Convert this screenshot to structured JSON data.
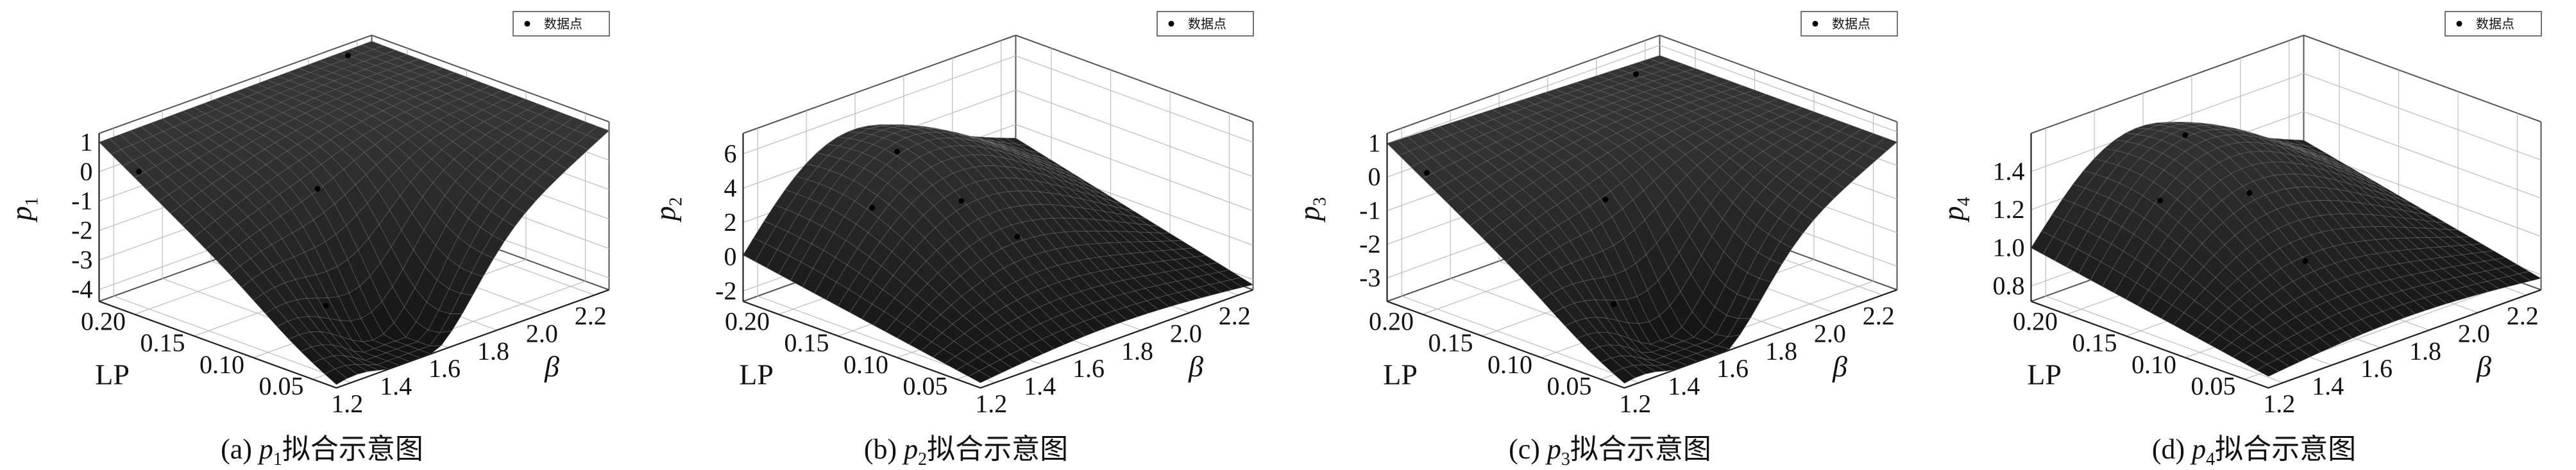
{
  "legend_label": "数据点",
  "panels": [
    {
      "caption_prefix": "(a) ",
      "caption_var": "p",
      "caption_sub": "1",
      "caption_suffix": "拟合示意图"
    },
    {
      "caption_prefix": "(b) ",
      "caption_var": "p",
      "caption_sub": "2",
      "caption_suffix": "拟合示意图"
    },
    {
      "caption_prefix": "(c) ",
      "caption_var": "p",
      "caption_sub": "3",
      "caption_suffix": "拟合示意图"
    },
    {
      "caption_prefix": "(d) ",
      "caption_var": "p",
      "caption_sub": "4",
      "caption_suffix": "拟合示意图"
    }
  ],
  "chart_data": [
    {
      "type": "surface",
      "title": "",
      "zlabel": "p1",
      "xlabel": "β",
      "ylabel": "LP",
      "x_ticks": [
        "1.2",
        "1.4",
        "1.6",
        "1.8",
        "2.0",
        "2.2"
      ],
      "y_ticks": [
        "0.05",
        "0.10",
        "0.15",
        "0.20"
      ],
      "z_ticks": [
        "-4",
        "-3",
        "-2",
        "-1",
        "0",
        "1"
      ],
      "xlim": [
        1.15,
        2.3
      ],
      "ylim": [
        0.03,
        0.2
      ],
      "zlim": [
        -4.4,
        1.3
      ],
      "legend": "数据点",
      "legend_position": "top-right",
      "grid": true,
      "surface_corners": {
        "lp_min_beta_min": -4.1,
        "lp_min_beta_max": 1.0,
        "lp_max_beta_min": 1.0,
        "lp_max_beta_max": 1.1
      },
      "data_points": [
        {
          "beta": 2.2,
          "lp": 0.2,
          "value": 0.9
        },
        {
          "beta": 1.2,
          "lp": 0.18,
          "value": 0.2
        },
        {
          "beta": 1.6,
          "lp": 0.12,
          "value": -0.5
        },
        {
          "beta": 1.4,
          "lp": 0.08,
          "value": -3.2
        }
      ]
    },
    {
      "type": "surface",
      "title": "",
      "zlabel": "p2",
      "xlabel": "β",
      "ylabel": "LP",
      "x_ticks": [
        "1.2",
        "1.4",
        "1.6",
        "1.8",
        "2.0",
        "2.2"
      ],
      "y_ticks": [
        "0.05",
        "0.10",
        "0.15",
        "0.20"
      ],
      "z_ticks": [
        "-2",
        "0",
        "2",
        "4",
        "6"
      ],
      "xlim": [
        1.15,
        2.3
      ],
      "ylim": [
        0.03,
        0.2
      ],
      "zlim": [
        -2.6,
        7.2
      ],
      "legend": "数据点",
      "legend_position": "top-right",
      "grid": true,
      "surface_corners": {
        "lp_min_beta_min": -2.3,
        "lp_min_beta_max": -2.3,
        "lp_max_beta_min": 0.1,
        "lp_max_beta_max": 1.2
      },
      "data_points": [
        {
          "beta": 1.4,
          "lp": 0.15,
          "value": 3.1
        },
        {
          "beta": 1.6,
          "lp": 0.12,
          "value": 3.4
        },
        {
          "beta": 1.8,
          "lp": 0.2,
          "value": 2.9
        },
        {
          "beta": 1.6,
          "lp": 0.08,
          "value": 2.5
        }
      ]
    },
    {
      "type": "surface",
      "title": "",
      "zlabel": "p3",
      "xlabel": "β",
      "ylabel": "LP",
      "x_ticks": [
        "1.2",
        "1.4",
        "1.6",
        "1.8",
        "2.0",
        "2.2"
      ],
      "y_ticks": [
        "0.05",
        "0.10",
        "0.15",
        "0.20"
      ],
      "z_ticks": [
        "-3",
        "-2",
        "-1",
        "0",
        "1"
      ],
      "xlim": [
        1.15,
        2.3
      ],
      "ylim": [
        0.03,
        0.2
      ],
      "zlim": [
        -3.7,
        1.3
      ],
      "legend": "数据点",
      "legend_position": "top-right",
      "grid": true,
      "surface_corners": {
        "lp_min_beta_min": -3.4,
        "lp_min_beta_max": 0.7,
        "lp_max_beta_min": 1.0,
        "lp_max_beta_max": 0.7
      },
      "data_points": [
        {
          "beta": 2.2,
          "lp": 0.2,
          "value": 0.4
        },
        {
          "beta": 1.2,
          "lp": 0.18,
          "value": 0.3
        },
        {
          "beta": 1.6,
          "lp": 0.12,
          "value": -0.6
        },
        {
          "beta": 1.4,
          "lp": 0.08,
          "value": -2.6
        }
      ]
    },
    {
      "type": "surface",
      "title": "",
      "zlabel": "p4",
      "xlabel": "β",
      "ylabel": "LP",
      "x_ticks": [
        "1.2",
        "1.4",
        "1.6",
        "1.8",
        "2.0",
        "2.2"
      ],
      "y_ticks": [
        "0.05",
        "0.10",
        "0.15",
        "0.20"
      ],
      "z_ticks": [
        "0.8",
        "1.0",
        "1.2",
        "1.4"
      ],
      "xlim": [
        1.15,
        2.3
      ],
      "ylim": [
        0.03,
        0.2
      ],
      "zlim": [
        0.72,
        1.6
      ],
      "legend": "数据点",
      "legend_position": "top-right",
      "grid": true,
      "surface_corners": {
        "lp_min_beta_min": 0.78,
        "lp_min_beta_max": 0.78,
        "lp_max_beta_min": 1.0,
        "lp_max_beta_max": 1.05
      },
      "data_points": [
        {
          "beta": 1.4,
          "lp": 0.15,
          "value": 1.27
        },
        {
          "beta": 1.6,
          "lp": 0.12,
          "value": 1.3
        },
        {
          "beta": 1.8,
          "lp": 0.2,
          "value": 1.3
        },
        {
          "beta": 1.6,
          "lp": 0.08,
          "value": 1.05
        }
      ]
    }
  ]
}
